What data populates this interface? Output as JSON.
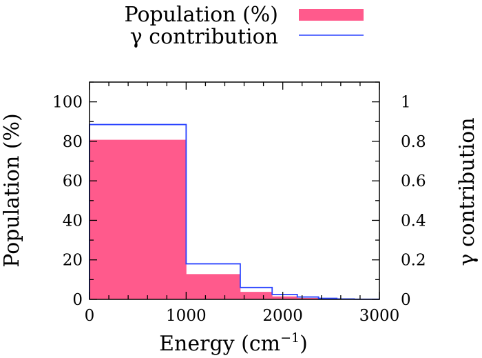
{
  "chart_data": {
    "type": "bar",
    "xlabel": "Energy (cm",
    "xlabel_exponent": "−1",
    "xlabel_close": ")",
    "ylabel": "Population (%)",
    "y2label": "γ contribution",
    "xlim": [
      0,
      3000
    ],
    "ylim": [
      0,
      110
    ],
    "y2lim": [
      0,
      1.1
    ],
    "x_ticks": [
      "0",
      "1000",
      "2000",
      "3000"
    ],
    "y_ticks": [
      "0",
      "20",
      "40",
      "60",
      "80",
      "100"
    ],
    "y2_ticks": [
      "0",
      "0.2",
      "0.4",
      "0.6",
      "0.8",
      "1"
    ],
    "bin_edges": [
      0,
      1000,
      1560,
      1890,
      2150,
      2370,
      2560,
      2740,
      3000
    ],
    "series": [
      {
        "name": "Population (%)",
        "style": "filled bars",
        "color": "#ff5a8c",
        "axis": "left",
        "values": [
          80.8,
          12.8,
          3.8,
          1.5,
          0.7,
          0.3,
          0.1,
          0.05
        ]
      },
      {
        "name": "γ contribution",
        "style": "step line",
        "color": "#2b44ff",
        "axis": "right",
        "values": [
          0.885,
          0.18,
          0.06,
          0.025,
          0.012,
          0.005,
          0.002,
          0.001
        ]
      }
    ],
    "legend_position": "top-right",
    "grid": false
  }
}
